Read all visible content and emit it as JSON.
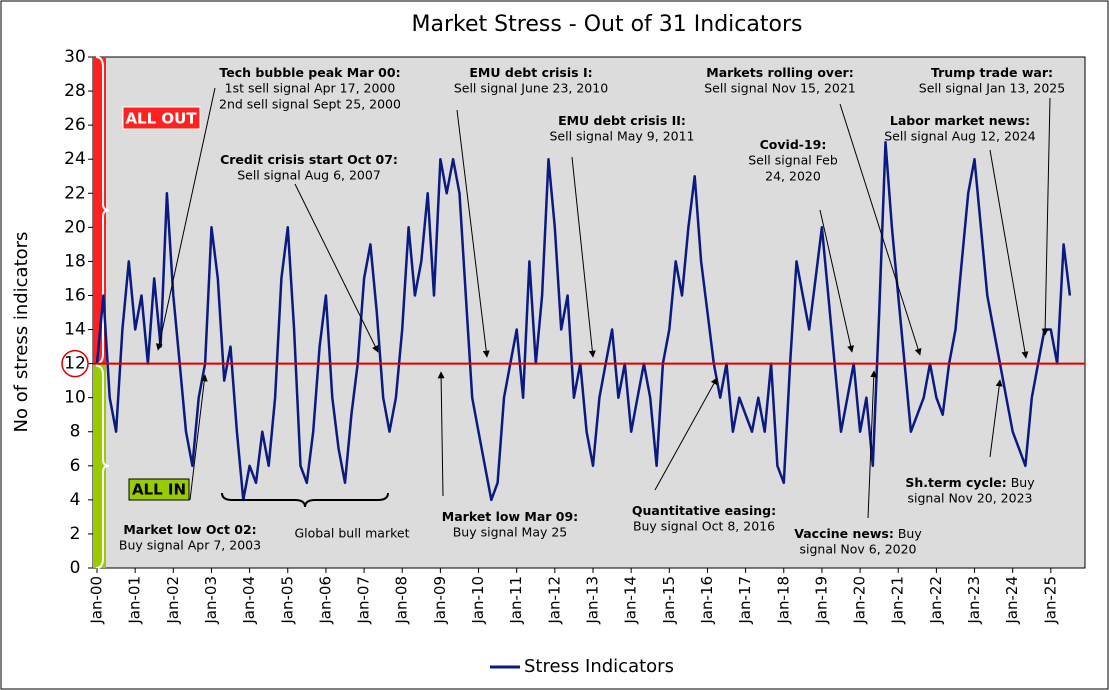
{
  "chart_data": {
    "type": "line",
    "title": "Market Stress - Out of 31 Indicators",
    "y_label": "No of stress indicators",
    "xlim": [
      "2000-01",
      "2026-01"
    ],
    "ylim": [
      0,
      30
    ],
    "yticks": [
      0,
      2,
      4,
      6,
      8,
      10,
      12,
      14,
      16,
      18,
      20,
      22,
      24,
      26,
      28,
      30
    ],
    "xticks": [
      {
        "value": "2000-01",
        "label": "Jan-00"
      },
      {
        "value": "2001-01",
        "label": "Jan-01"
      },
      {
        "value": "2002-01",
        "label": "Jan-02"
      },
      {
        "value": "2003-01",
        "label": "Jan-03"
      },
      {
        "value": "2004-01",
        "label": "Jan-04"
      },
      {
        "value": "2005-01",
        "label": "Jan-05"
      },
      {
        "value": "2006-01",
        "label": "Jan-06"
      },
      {
        "value": "2007-01",
        "label": "Jan-07"
      },
      {
        "value": "2008-01",
        "label": "Jan-08"
      },
      {
        "value": "2009-01",
        "label": "Jan-09"
      },
      {
        "value": "2010-01",
        "label": "Jan-10"
      },
      {
        "value": "2011-01",
        "label": "Jan-11"
      },
      {
        "value": "2012-01",
        "label": "Jan-12"
      },
      {
        "value": "2013-01",
        "label": "Jan-13"
      },
      {
        "value": "2014-01",
        "label": "Jan-14"
      },
      {
        "value": "2015-01",
        "label": "Jan-15"
      },
      {
        "value": "2016-01",
        "label": "Jan-16"
      },
      {
        "value": "2017-01",
        "label": "Jan-17"
      },
      {
        "value": "2018-01",
        "label": "Jan-18"
      },
      {
        "value": "2019-01",
        "label": "Jan-19"
      },
      {
        "value": "2020-01",
        "label": "Jan-20"
      },
      {
        "value": "2021-01",
        "label": "Jan-21"
      },
      {
        "value": "2022-01",
        "label": "Jan-22"
      },
      {
        "value": "2023-01",
        "label": "Jan-23"
      },
      {
        "value": "2024-01",
        "label": "Jan-24"
      },
      {
        "value": "2025-01",
        "label": "Jan-25"
      }
    ],
    "threshold": 12,
    "threshold_color": "#e00000",
    "zone_high_label": "ALL OUT",
    "zone_low_label": "ALL IN",
    "zone_high_color": "#ff2020",
    "zone_low_color": "#99cc00",
    "background": "#dcdcdc",
    "x": [
      "2000-01",
      "2000-03",
      "2000-05",
      "2000-07",
      "2000-09",
      "2000-11",
      "2001-01",
      "2001-03",
      "2001-05",
      "2001-07",
      "2001-09",
      "2001-11",
      "2002-01",
      "2002-03",
      "2002-05",
      "2002-07",
      "2002-09",
      "2002-11",
      "2003-01",
      "2003-03",
      "2003-05",
      "2003-07",
      "2003-09",
      "2003-11",
      "2004-01",
      "2004-03",
      "2004-05",
      "2004-07",
      "2004-09",
      "2004-11",
      "2005-01",
      "2005-03",
      "2005-05",
      "2005-07",
      "2005-09",
      "2005-11",
      "2006-01",
      "2006-03",
      "2006-05",
      "2006-07",
      "2006-09",
      "2006-11",
      "2007-01",
      "2007-03",
      "2007-05",
      "2007-07",
      "2007-09",
      "2007-11",
      "2008-01",
      "2008-03",
      "2008-05",
      "2008-07",
      "2008-09",
      "2008-11",
      "2009-01",
      "2009-03",
      "2009-05",
      "2009-07",
      "2009-09",
      "2009-11",
      "2010-01",
      "2010-03",
      "2010-05",
      "2010-07",
      "2010-09",
      "2010-11",
      "2011-01",
      "2011-03",
      "2011-05",
      "2011-07",
      "2011-09",
      "2011-11",
      "2012-01",
      "2012-03",
      "2012-05",
      "2012-07",
      "2012-09",
      "2012-11",
      "2013-01",
      "2013-03",
      "2013-05",
      "2013-07",
      "2013-09",
      "2013-11",
      "2014-01",
      "2014-03",
      "2014-05",
      "2014-07",
      "2014-09",
      "2014-11",
      "2015-01",
      "2015-03",
      "2015-05",
      "2015-07",
      "2015-09",
      "2015-11",
      "2016-01",
      "2016-03",
      "2016-05",
      "2016-07",
      "2016-09",
      "2016-11",
      "2017-01",
      "2017-03",
      "2017-05",
      "2017-07",
      "2017-09",
      "2017-11",
      "2018-01",
      "2018-03",
      "2018-05",
      "2018-07",
      "2018-09",
      "2018-11",
      "2019-01",
      "2019-03",
      "2019-05",
      "2019-07",
      "2019-09",
      "2019-11",
      "2020-01",
      "2020-03",
      "2020-05",
      "2020-07",
      "2020-09",
      "2020-11",
      "2021-01",
      "2021-03",
      "2021-05",
      "2021-07",
      "2021-09",
      "2021-11",
      "2022-01",
      "2022-03",
      "2022-05",
      "2022-07",
      "2022-09",
      "2022-11",
      "2023-01",
      "2023-03",
      "2023-05",
      "2023-07",
      "2023-09",
      "2023-11",
      "2024-01",
      "2024-03",
      "2024-05",
      "2024-07",
      "2024-09",
      "2024-11",
      "2025-01",
      "2025-03",
      "2025-05",
      "2025-07"
    ],
    "series": [
      {
        "name": "Stress Indicators",
        "color": "#0a1a80",
        "values": [
          12,
          16,
          10,
          8,
          14,
          18,
          14,
          16,
          12,
          17,
          13,
          22,
          16,
          12,
          8,
          6,
          10,
          12,
          20,
          17,
          11,
          13,
          8,
          4,
          6,
          5,
          8,
          6,
          10,
          17,
          20,
          14,
          6,
          5,
          8,
          13,
          16,
          10,
          7,
          5,
          9,
          12,
          17,
          19,
          15,
          10,
          8,
          10,
          14,
          20,
          16,
          18,
          22,
          16,
          24,
          22,
          24,
          22,
          16,
          10,
          8,
          6,
          4,
          5,
          10,
          12,
          14,
          10,
          18,
          12,
          16,
          24,
          20,
          14,
          16,
          10,
          12,
          8,
          6,
          10,
          12,
          14,
          10,
          12,
          8,
          10,
          12,
          10,
          6,
          12,
          14,
          18,
          16,
          20,
          23,
          18,
          15,
          12,
          10,
          12,
          8,
          10,
          9,
          8,
          10,
          8,
          12,
          6,
          5,
          12,
          18,
          16,
          14,
          17,
          20,
          16,
          12,
          8,
          10,
          12,
          8,
          10,
          6,
          15,
          25,
          20,
          16,
          12,
          8,
          9,
          10,
          12,
          10,
          9,
          12,
          14,
          18,
          22,
          24,
          20,
          16,
          14,
          12,
          10,
          8,
          7,
          6,
          10,
          12,
          14,
          14,
          12,
          19,
          16
        ]
      }
    ],
    "bracket_label": "Global bull market",
    "annotations": [
      {
        "title": "Tech bubble peak Mar 00:",
        "lines": [
          "1st sell signal Apr 17, 2000",
          "2nd sell signal Sept 25, 2000"
        ]
      },
      {
        "title": "Credit crisis start Oct 07:",
        "lines": [
          "Sell signal Aug 6, 2007"
        ]
      },
      {
        "title": "EMU debt crisis I:",
        "lines": [
          "Sell signal June 23, 2010"
        ]
      },
      {
        "title": "EMU debt crisis II:",
        "lines": [
          "Sell signal May 9, 2011"
        ]
      },
      {
        "title": "Markets rolling over:",
        "lines": [
          "Sell signal Nov 15, 2021"
        ]
      },
      {
        "title": "Covid-19:",
        "lines": [
          "Sell signal Feb",
          "24, 2020"
        ]
      },
      {
        "title": "Trump trade war:",
        "lines": [
          "Sell signal Jan 13, 2025"
        ]
      },
      {
        "title": "Labor market news:",
        "lines": [
          "Sell signal Aug 12, 2024"
        ]
      },
      {
        "title": "Market low Oct 02:",
        "lines": [
          "Buy signal Apr 7, 2003"
        ]
      },
      {
        "title": "Market low Mar 09:",
        "lines": [
          "Buy signal May 25"
        ]
      },
      {
        "title": "Quantitative easing:",
        "lines": [
          "Buy signal Oct 8, 2016"
        ]
      },
      {
        "title": "Vaccine news:",
        "tail": "Buy",
        "lines": [
          "signal Nov 6, 2020"
        ]
      },
      {
        "title": "Sh.term cycle:",
        "tail": "Buy",
        "lines": [
          "signal Nov 20, 2023"
        ]
      }
    ]
  }
}
